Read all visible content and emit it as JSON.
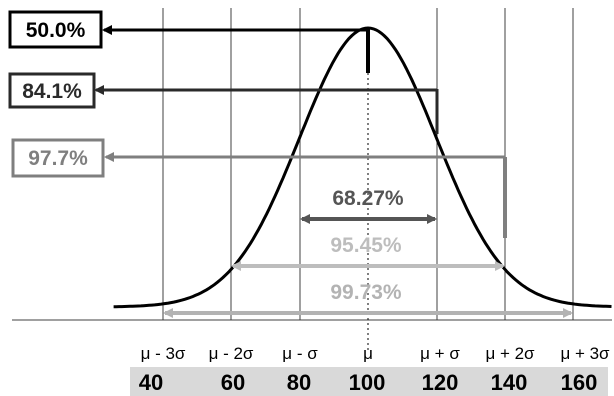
{
  "chart_data": {
    "type": "line",
    "title": "",
    "mean": 100,
    "sigma": 20,
    "x_tick_symbols": [
      "μ - 3σ",
      "μ - 2σ",
      "μ - σ",
      "μ",
      "μ + σ",
      "μ + 2σ",
      "μ + 3σ"
    ],
    "x_tick_values": [
      "40",
      "60",
      "80",
      "100",
      "120",
      "140",
      "160"
    ],
    "cumulative_labels": [
      {
        "label": "50.0%",
        "at": "μ",
        "style": "boxed-bold"
      },
      {
        "label": "84.1%",
        "at": "μ + σ",
        "style": "boxed-dark"
      },
      {
        "label": "97.7%",
        "at": "μ + 2σ",
        "style": "boxed-gray"
      }
    ],
    "interval_labels": [
      {
        "label": "68.27%",
        "range": [
          "μ - σ",
          "μ + σ"
        ]
      },
      {
        "label": "95.45%",
        "range": [
          "μ - 2σ",
          "μ + 2σ"
        ]
      },
      {
        "label": "99.73%",
        "range": [
          "μ - 3σ",
          "μ + 3σ"
        ]
      }
    ],
    "colors": {
      "curve": "#000000",
      "mean_line": "#000000",
      "bracket_50": "#000000",
      "bracket_84": "#2a2a2a",
      "bracket_97": "#7f7f7f",
      "interval_68": "#555555",
      "interval_95": "#bdbdbd",
      "interval_99": "#b3b3b3",
      "value_band": "#d9d9d9",
      "grid": "#404040"
    },
    "grid": true
  }
}
